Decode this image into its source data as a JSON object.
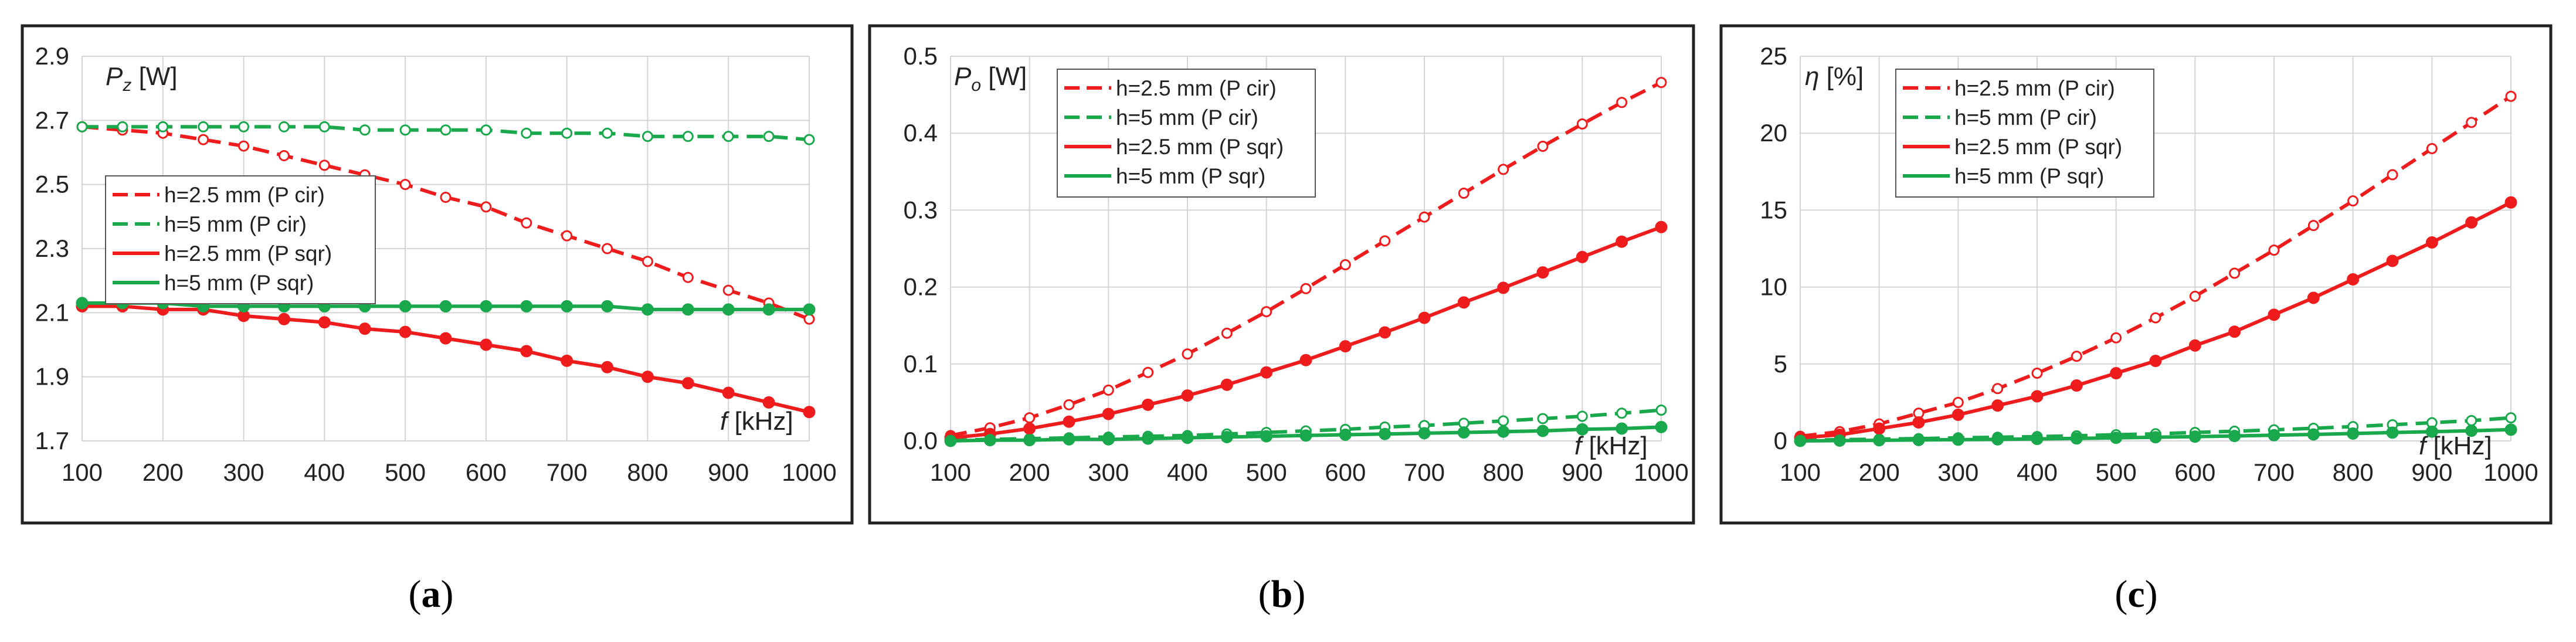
{
  "chart_data": [
    {
      "type": "line",
      "panel_caption": "(a)",
      "ylabel_symbol": "P",
      "ylabel_sub": "z",
      "ylabel_unit": " [W]",
      "xlabel_symbol": "f",
      "xlabel_unit": " [kHz]",
      "xlim": [
        100,
        1000
      ],
      "ylim": [
        1.7,
        2.9
      ],
      "xticks": [
        "100",
        "200",
        "300",
        "400",
        "500",
        "600",
        "700",
        "800",
        "900",
        "1000"
      ],
      "yticks": [
        "1.7",
        "1.9",
        "2.1",
        "2.3",
        "2.5",
        "2.7",
        "2.9"
      ],
      "grid": true,
      "legend_position": "middle-left",
      "x": [
        100,
        150,
        200,
        250,
        300,
        350,
        400,
        450,
        500,
        550,
        600,
        650,
        700,
        750,
        800,
        850,
        900,
        950,
        1000
      ],
      "series": [
        {
          "name": "h=2.5 mm (P cir)",
          "color": "#ee1c1c",
          "dash": true,
          "marker": "open",
          "values": [
            2.68,
            2.67,
            2.66,
            2.64,
            2.62,
            2.59,
            2.56,
            2.53,
            2.5,
            2.46,
            2.43,
            2.38,
            2.34,
            2.3,
            2.26,
            2.21,
            2.17,
            2.13,
            2.08
          ]
        },
        {
          "name": "h=5 mm (P cir)",
          "color": "#1aa84c",
          "dash": true,
          "marker": "open",
          "values": [
            2.68,
            2.68,
            2.68,
            2.68,
            2.68,
            2.68,
            2.68,
            2.67,
            2.67,
            2.67,
            2.67,
            2.66,
            2.66,
            2.66,
            2.65,
            2.65,
            2.65,
            2.65,
            2.64
          ]
        },
        {
          "name": "h=2.5 mm (P sqr)",
          "color": "#ee1c1c",
          "dash": false,
          "marker": "filled",
          "values": [
            2.12,
            2.12,
            2.11,
            2.11,
            2.09,
            2.08,
            2.07,
            2.05,
            2.04,
            2.02,
            2.0,
            1.98,
            1.95,
            1.93,
            1.9,
            1.88,
            1.85,
            1.82,
            1.79
          ]
        },
        {
          "name": "h=5 mm (P sqr)",
          "color": "#1aa84c",
          "dash": false,
          "marker": "filled",
          "values": [
            2.13,
            2.13,
            2.13,
            2.12,
            2.12,
            2.12,
            2.12,
            2.12,
            2.12,
            2.12,
            2.12,
            2.12,
            2.12,
            2.12,
            2.11,
            2.11,
            2.11,
            2.11,
            2.11
          ]
        }
      ]
    },
    {
      "type": "line",
      "panel_caption": "(b)",
      "ylabel_symbol": "P",
      "ylabel_sub": "o",
      "ylabel_unit": " [W]",
      "xlabel_symbol": "f",
      "xlabel_unit": " [kHz]",
      "xlim": [
        100,
        1000
      ],
      "ylim": [
        0,
        0.5
      ],
      "xticks": [
        "100",
        "200",
        "300",
        "400",
        "500",
        "600",
        "700",
        "800",
        "900",
        "1000"
      ],
      "yticks": [
        "0.0",
        "0.1",
        "0.2",
        "0.3",
        "0.4",
        "0.5"
      ],
      "grid": true,
      "legend_position": "top-left",
      "x": [
        100,
        150,
        200,
        250,
        300,
        350,
        400,
        450,
        500,
        550,
        600,
        650,
        700,
        750,
        800,
        850,
        900,
        950,
        1000
      ],
      "series": [
        {
          "name": "h=2.5 mm (P cir)",
          "color": "#ee1c1c",
          "dash": true,
          "marker": "open",
          "values": [
            0.007,
            0.017,
            0.03,
            0.047,
            0.066,
            0.089,
            0.113,
            0.14,
            0.168,
            0.198,
            0.229,
            0.26,
            0.291,
            0.322,
            0.353,
            0.383,
            0.412,
            0.44,
            0.466
          ]
        },
        {
          "name": "h=5 mm (P cir)",
          "color": "#1aa84c",
          "dash": true,
          "marker": "open",
          "values": [
            0.001,
            0.002,
            0.003,
            0.004,
            0.005,
            0.006,
            0.007,
            0.009,
            0.011,
            0.013,
            0.015,
            0.018,
            0.02,
            0.023,
            0.026,
            0.029,
            0.032,
            0.036,
            0.04
          ]
        },
        {
          "name": "h=2.5 mm (P sqr)",
          "color": "#ee1c1c",
          "dash": false,
          "marker": "filled",
          "values": [
            0.004,
            0.009,
            0.016,
            0.025,
            0.035,
            0.047,
            0.059,
            0.073,
            0.089,
            0.105,
            0.123,
            0.141,
            0.16,
            0.18,
            0.199,
            0.219,
            0.239,
            0.259,
            0.278
          ]
        },
        {
          "name": "h=5 mm (P sqr)",
          "color": "#1aa84c",
          "dash": false,
          "marker": "filled",
          "values": [
            0.0,
            0.001,
            0.001,
            0.002,
            0.002,
            0.003,
            0.004,
            0.005,
            0.006,
            0.007,
            0.008,
            0.009,
            0.01,
            0.011,
            0.012,
            0.013,
            0.015,
            0.016,
            0.018
          ]
        }
      ]
    },
    {
      "type": "line",
      "panel_caption": "(c)",
      "ylabel_symbol": "η",
      "ylabel_sub": "",
      "ylabel_unit": " [%]",
      "xlabel_symbol": "f",
      "xlabel_unit": " [kHz]",
      "xlim": [
        100,
        1000
      ],
      "ylim": [
        0,
        25
      ],
      "xticks": [
        "100",
        "200",
        "300",
        "400",
        "500",
        "600",
        "700",
        "800",
        "900",
        "1000"
      ],
      "yticks": [
        "0",
        "5",
        "10",
        "15",
        "20",
        "25"
      ],
      "grid": true,
      "legend_position": "top-left",
      "x": [
        100,
        150,
        200,
        250,
        300,
        350,
        400,
        450,
        500,
        550,
        600,
        650,
        700,
        750,
        800,
        850,
        900,
        950,
        1000
      ],
      "series": [
        {
          "name": "h=2.5 mm (P cir)",
          "color": "#ee1c1c",
          "dash": true,
          "marker": "open",
          "values": [
            0.3,
            0.6,
            1.1,
            1.8,
            2.5,
            3.4,
            4.4,
            5.5,
            6.7,
            8.0,
            9.4,
            10.9,
            12.4,
            14.0,
            15.6,
            17.3,
            19.0,
            20.7,
            22.4
          ]
        },
        {
          "name": "h=5 mm (P cir)",
          "color": "#1aa84c",
          "dash": true,
          "marker": "open",
          "values": [
            0.05,
            0.08,
            0.12,
            0.15,
            0.2,
            0.24,
            0.28,
            0.33,
            0.4,
            0.46,
            0.55,
            0.63,
            0.72,
            0.82,
            0.93,
            1.05,
            1.18,
            1.32,
            1.5
          ]
        },
        {
          "name": "h=2.5 mm (P sqr)",
          "color": "#ee1c1c",
          "dash": false,
          "marker": "filled",
          "values": [
            0.2,
            0.4,
            0.8,
            1.2,
            1.7,
            2.3,
            2.9,
            3.6,
            4.4,
            5.2,
            6.2,
            7.1,
            8.2,
            9.3,
            10.5,
            11.7,
            12.9,
            14.2,
            15.5
          ]
        },
        {
          "name": "h=5 mm (P sqr)",
          "color": "#1aa84c",
          "dash": false,
          "marker": "filled",
          "values": [
            0.0,
            0.02,
            0.04,
            0.06,
            0.08,
            0.1,
            0.13,
            0.16,
            0.2,
            0.24,
            0.28,
            0.32,
            0.37,
            0.42,
            0.48,
            0.54,
            0.6,
            0.66,
            0.73
          ]
        }
      ]
    }
  ]
}
